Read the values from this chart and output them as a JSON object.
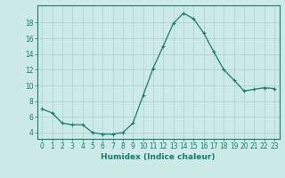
{
  "x": [
    0,
    1,
    2,
    3,
    4,
    5,
    6,
    7,
    8,
    9,
    10,
    11,
    12,
    13,
    14,
    15,
    16,
    17,
    18,
    19,
    20,
    21,
    22,
    23
  ],
  "y": [
    7.0,
    6.5,
    5.2,
    5.0,
    5.0,
    4.0,
    3.8,
    3.8,
    4.0,
    5.2,
    8.7,
    12.2,
    15.0,
    17.9,
    19.2,
    18.5,
    16.7,
    14.3,
    12.0,
    10.7,
    9.3,
    9.5,
    9.7,
    9.6
  ],
  "line_color": "#1a7a6e",
  "marker": "+",
  "marker_size": 3,
  "marker_lw": 0.8,
  "line_width": 0.9,
  "bg_color": "#cceae7",
  "grid_color": "#aacfcc",
  "xlabel": "Humidex (Indice chaleur)",
  "xlim": [
    -0.5,
    23.5
  ],
  "ylim": [
    3.2,
    20.2
  ],
  "yticks": [
    4,
    6,
    8,
    10,
    12,
    14,
    16,
    18
  ],
  "xticks": [
    0,
    1,
    2,
    3,
    4,
    5,
    6,
    7,
    8,
    9,
    10,
    11,
    12,
    13,
    14,
    15,
    16,
    17,
    18,
    19,
    20,
    21,
    22,
    23
  ],
  "tick_color": "#1a7a6e",
  "axis_color": "#1a7a6e",
  "label_fontsize": 6.5,
  "tick_fontsize": 5.5
}
